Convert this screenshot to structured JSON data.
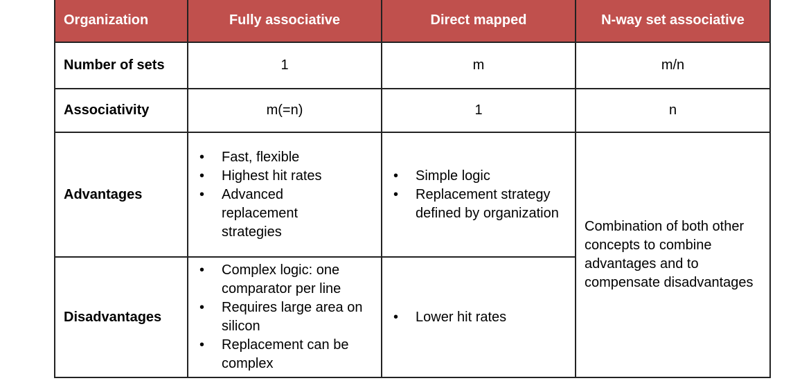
{
  "header_color": "#c0504d",
  "headers": [
    "Organization",
    "Fully associative",
    "Direct mapped",
    "N-way set associative"
  ],
  "rows": {
    "sets": {
      "label": "Number of sets",
      "values": [
        "1",
        "m",
        "m/n"
      ]
    },
    "assoc": {
      "label": "Associativity",
      "values": [
        "m(=n)",
        "1",
        "n"
      ]
    },
    "adv": {
      "label": "Advantages",
      "fully": [
        "Fast, flexible",
        "Highest hit rates",
        "Advanced replacement strategies"
      ],
      "direct": [
        "Simple logic",
        "Replacement strategy defined by organization"
      ]
    },
    "disadv": {
      "label": "Disadvantages",
      "fully": [
        "Complex logic: one comparator per line",
        "Requires large area on silicon",
        "Replacement can be complex"
      ],
      "direct": [
        "Lower hit rates"
      ]
    },
    "nway_combined": "Combination of both other concepts to combine advantages and to compensate disadvantages"
  }
}
